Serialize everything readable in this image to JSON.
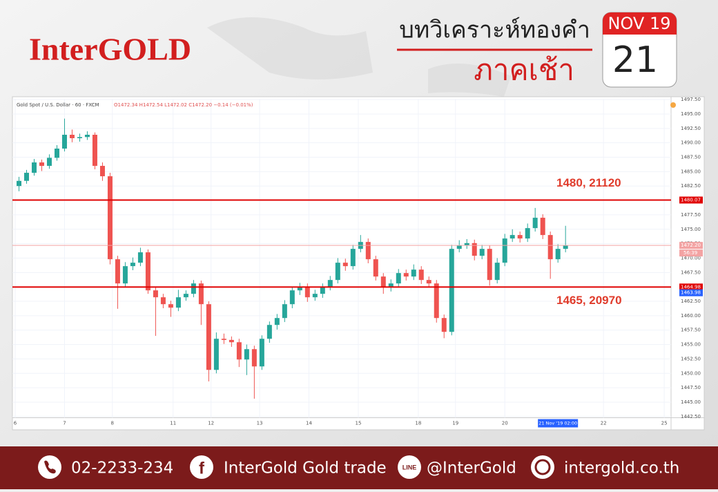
{
  "header": {
    "brand": "InterGOLD",
    "title": "บทวิเคราะห์ทองคำ",
    "subtitle": "ภาคเช้า",
    "month": "NOV 19",
    "day": "21"
  },
  "chart_data": {
    "type": "candlestick",
    "title": "Gold Spot / U.S. Dollar · 60 · FXCM",
    "ohlc_text": "O1472.34 H1472.54 L1472.02 C1472.20 −0.14 (−0.01%)",
    "up_color": "#26a69a",
    "down_color": "#ef5350",
    "grid": true,
    "open": [
      1482.5,
      1483.4,
      1484.8,
      1486.6,
      1486,
      1487.4,
      1489,
      1491.4,
      1490.8,
      1491,
      1491.4,
      1486,
      1484.2,
      1469.8,
      1465.6,
      1468.6,
      1469.2,
      1471,
      1464.4,
      1463.2,
      1462,
      1461.4,
      1463.2,
      1463.8,
      1465.6,
      1462,
      1450.6,
      1456,
      1455.8,
      1455.4,
      1452.4,
      1454.2,
      1451.2,
      1456,
      1458.4,
      1459.6,
      1462,
      1464.4,
      1465,
      1463.2,
      1463.8,
      1465,
      1466.2,
      1469.2,
      1468.6,
      1471.6,
      1472.8,
      1469.8,
      1466.8,
      1465,
      1465.6,
      1467.4,
      1466.8,
      1468,
      1466.2,
      1465.6,
      1459.6,
      1457.2,
      1471.6,
      1472.2,
      1472.6,
      1470.4,
      1471.6,
      1466.2,
      1469.2,
      1473.4,
      1474,
      1473.4,
      1475.2,
      1477,
      1474,
      1469.8,
      1471.6
    ],
    "high": [
      1484.1,
      1485.3,
      1487.2,
      1487.1,
      1488,
      1489.6,
      1494.2,
      1492.3,
      1491.6,
      1492,
      1491.8,
      1486.6,
      1484.8,
      1470.4,
      1469.3,
      1470.1,
      1471.8,
      1471.5,
      1465,
      1463.8,
      1462.6,
      1464.5,
      1464.4,
      1466.2,
      1466.1,
      1462.5,
      1457.1,
      1456.9,
      1456.4,
      1456,
      1455,
      1454.8,
      1456.6,
      1459,
      1460.3,
      1462.7,
      1465,
      1465.7,
      1465.6,
      1464.5,
      1465.6,
      1466.9,
      1470,
      1469.9,
      1472.3,
      1474,
      1473.4,
      1470.4,
      1467.4,
      1466.3,
      1468.1,
      1468,
      1468.9,
      1468.6,
      1466.8,
      1466.2,
      1460.2,
      1472.3,
      1473.1,
      1473.3,
      1473.2,
      1472.3,
      1472.2,
      1470,
      1474.2,
      1475,
      1474.6,
      1476,
      1478.7,
      1477.6,
      1474.6,
      1472.4,
      1475.6
    ],
    "low": [
      1481.6,
      1482.9,
      1484.3,
      1485.1,
      1485.5,
      1486.9,
      1488.5,
      1490.1,
      1490.2,
      1490.5,
      1485.4,
      1483.4,
      1468.9,
      1461.2,
      1465,
      1467.9,
      1468.6,
      1463.8,
      1456.5,
      1461.3,
      1459.8,
      1460.8,
      1462.6,
      1463.2,
      1458.4,
      1448.6,
      1450,
      1455.1,
      1454.6,
      1451.1,
      1449.7,
      1445.6,
      1450.6,
      1455.3,
      1457.6,
      1458.9,
      1461.3,
      1463.6,
      1462.4,
      1462.6,
      1463.1,
      1464.4,
      1465.6,
      1467.8,
      1468,
      1471,
      1469.1,
      1466.1,
      1463.8,
      1464.2,
      1465,
      1466.1,
      1466.2,
      1465.5,
      1464.9,
      1458.8,
      1456.1,
      1456.6,
      1471,
      1471.6,
      1469.6,
      1469.8,
      1465.2,
      1465.6,
      1468.6,
      1472.8,
      1472.7,
      1472.8,
      1474.6,
      1473.3,
      1466.4,
      1469.2,
      1471
    ],
    "close": [
      1483.4,
      1484.8,
      1486.6,
      1486,
      1487.4,
      1489,
      1491.4,
      1490.8,
      1491,
      1491.4,
      1486,
      1484.2,
      1469.8,
      1465.6,
      1468.6,
      1469.2,
      1471,
      1464.4,
      1463.2,
      1462,
      1461.4,
      1463.2,
      1463.8,
      1465.6,
      1462,
      1450.6,
      1456,
      1455.8,
      1455.4,
      1452.4,
      1454.2,
      1451.2,
      1456,
      1458.4,
      1459.6,
      1462,
      1464.4,
      1465,
      1463.2,
      1463.8,
      1465,
      1466.2,
      1469.2,
      1468.6,
      1471.6,
      1472.8,
      1469.8,
      1466.8,
      1465,
      1465.6,
      1467.4,
      1466.8,
      1468,
      1466.2,
      1465.6,
      1459.6,
      1457.2,
      1471.6,
      1472.2,
      1472.6,
      1470.4,
      1471.6,
      1466.2,
      1469.2,
      1473.4,
      1474,
      1473.4,
      1475.2,
      1477,
      1474,
      1469.8,
      1471.6,
      1472.2
    ],
    "xlim": [
      0,
      86.4
    ],
    "xticks": [
      {
        "value": 0,
        "label": "6"
      },
      {
        "value": 6.5,
        "label": "7"
      },
      {
        "value": 12.8,
        "label": "8"
      },
      {
        "value": 20.8,
        "label": "11"
      },
      {
        "value": 25.8,
        "label": "12"
      },
      {
        "value": 32.2,
        "label": "13"
      },
      {
        "value": 38.7,
        "label": "14"
      },
      {
        "value": 45.2,
        "label": "15"
      },
      {
        "value": 53.1,
        "label": "18"
      },
      {
        "value": 58,
        "label": "19"
      },
      {
        "value": 64.5,
        "label": "20"
      },
      {
        "value": 77.5,
        "label": "22"
      },
      {
        "value": 85.5,
        "label": "25"
      }
    ],
    "cursor_time": {
      "value": 71.5,
      "label": "21 Nov '19  02:00"
    },
    "ylim": [
      1442.3,
      1497.6
    ],
    "yticks": [
      {
        "value": 1442.5,
        "label": "1442.50"
      },
      {
        "value": 1445,
        "label": "1445.00"
      },
      {
        "value": 1447.5,
        "label": "1447.50"
      },
      {
        "value": 1450,
        "label": "1450.00"
      },
      {
        "value": 1452.5,
        "label": "1452.50"
      },
      {
        "value": 1455,
        "label": "1455.00"
      },
      {
        "value": 1457.5,
        "label": "1457.50"
      },
      {
        "value": 1460,
        "label": "1460.00"
      },
      {
        "value": 1462.5,
        "label": "1462.50"
      },
      {
        "value": 1465,
        "label": "1465.00"
      },
      {
        "value": 1467.5,
        "label": "1467.50"
      },
      {
        "value": 1470,
        "label": "1470.00"
      },
      {
        "value": 1472.5,
        "label": "1472.50"
      },
      {
        "value": 1475,
        "label": "1475.00"
      },
      {
        "value": 1477.5,
        "label": "1477.50"
      },
      {
        "value": 1480,
        "label": "1480.00"
      },
      {
        "value": 1482.5,
        "label": "1482.50"
      },
      {
        "value": 1485,
        "label": "1485.00"
      },
      {
        "value": 1487.5,
        "label": "1487.50"
      },
      {
        "value": 1490,
        "label": "1490.00"
      },
      {
        "value": 1492.5,
        "label": "1492.50"
      },
      {
        "value": 1495,
        "label": "1495.00"
      },
      {
        "value": 1497.5,
        "label": "1497.50"
      }
    ],
    "hlines": [
      {
        "value": 1480.07,
        "label": "1480.07",
        "color": "#e00000",
        "annotation": "1480, 21120"
      },
      {
        "value": 1464.98,
        "label": "1464.98",
        "color": "#e00000",
        "annotation": "1465, 20970"
      },
      {
        "value": 1472.2,
        "label": "1472.20",
        "color": "#f3a3a3",
        "countdown": "56:39"
      }
    ],
    "markers": [
      {
        "value": 1463.98,
        "label": "1463.98",
        "color": "#2962ff"
      }
    ]
  },
  "footer": {
    "phone": "02-2233-234",
    "facebook": "InterGold Gold trade",
    "line": "@InterGold",
    "web": "intergold.co.th"
  }
}
